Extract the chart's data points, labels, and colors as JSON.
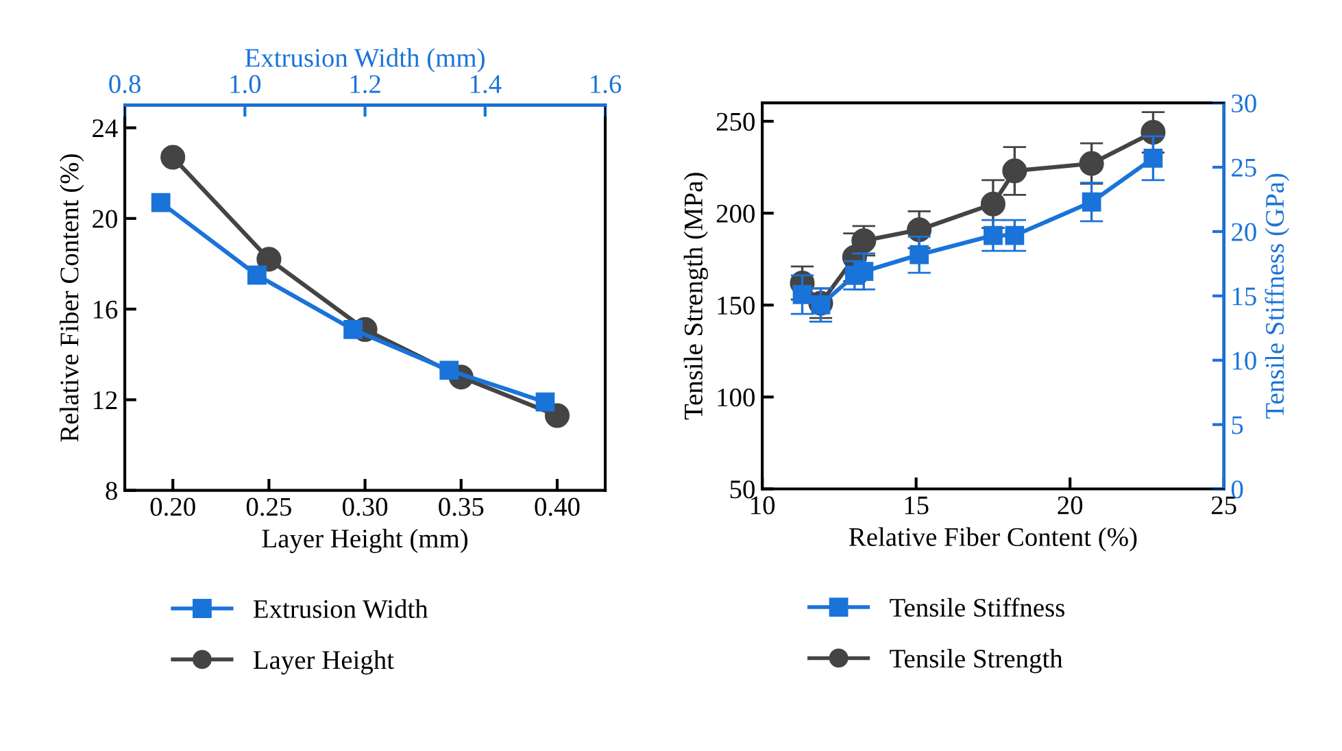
{
  "chart_data": [
    {
      "type": "line",
      "xlabel": "Layer Height (mm)",
      "x2label": "Extrusion Width (mm)",
      "ylabel": "Relative Fiber Content (%)",
      "xlim": [
        0.175,
        0.425
      ],
      "xticks": [
        {
          "value": 0.2,
          "label": "0.20"
        },
        {
          "value": 0.25,
          "label": "0.25"
        },
        {
          "value": 0.3,
          "label": "0.30"
        },
        {
          "value": 0.35,
          "label": "0.35"
        },
        {
          "value": 0.4,
          "label": "0.40"
        }
      ],
      "x2lim": [
        0.8,
        1.6
      ],
      "x2ticks": [
        0.8,
        {
          "value": 1.0,
          "label": "1.0"
        },
        1.2,
        1.4,
        1.6
      ],
      "ylim": [
        8,
        25
      ],
      "yticks": [
        8,
        12,
        16,
        20,
        24
      ],
      "legend": "bottom",
      "grid": false,
      "series": [
        {
          "name": "Extrusion Width",
          "color": "#1a73d9",
          "axis": "x2",
          "marker": "square",
          "x": [
            0.86,
            1.02,
            1.18,
            1.34,
            1.5
          ],
          "values": [
            20.7,
            17.5,
            15.1,
            13.3,
            11.9
          ]
        },
        {
          "name": "Layer Height",
          "color": "#444444",
          "marker": "circle",
          "x": [
            0.2,
            0.25,
            0.3,
            0.35,
            0.4
          ],
          "values": [
            22.7,
            18.2,
            15.1,
            13.0,
            11.3
          ]
        }
      ]
    },
    {
      "type": "line",
      "xlabel": "Relative Fiber Content (%)",
      "ylabel": "Tensile Strength (MPa)",
      "y2label": "Tensile Stiffness (GPa)",
      "xlim": [
        10,
        25
      ],
      "xticks": [
        10,
        15,
        20,
        25
      ],
      "ylim": [
        50,
        260
      ],
      "yticks": [
        50,
        100,
        150,
        200,
        250
      ],
      "y2lim": [
        0,
        30
      ],
      "y2ticks": [
        0,
        5,
        10,
        15,
        20,
        25,
        30
      ],
      "legend": "bottom",
      "grid": false,
      "series": [
        {
          "name": "Tensile Stiffness",
          "color": "#1a73d9",
          "axis": "y2",
          "marker": "square",
          "x": [
            11.3,
            11.9,
            13.0,
            13.3,
            15.1,
            17.5,
            18.2,
            20.7,
            22.7
          ],
          "values": [
            15.1,
            14.3,
            16.6,
            16.9,
            18.2,
            19.7,
            19.7,
            22.3,
            25.7
          ],
          "errors": [
            1.5,
            1.3,
            1.1,
            1.4,
            1.4,
            1.2,
            1.2,
            1.5,
            1.7
          ]
        },
        {
          "name": "Tensile Strength",
          "color": "#444444",
          "marker": "circle",
          "x": [
            11.3,
            11.9,
            13.0,
            13.3,
            15.1,
            17.5,
            18.2,
            20.7,
            22.7
          ],
          "values": [
            162,
            151,
            176,
            185,
            191,
            205,
            223,
            227,
            244
          ],
          "errors": [
            9,
            8,
            13,
            8,
            10,
            13,
            13,
            11,
            11
          ]
        }
      ]
    }
  ]
}
